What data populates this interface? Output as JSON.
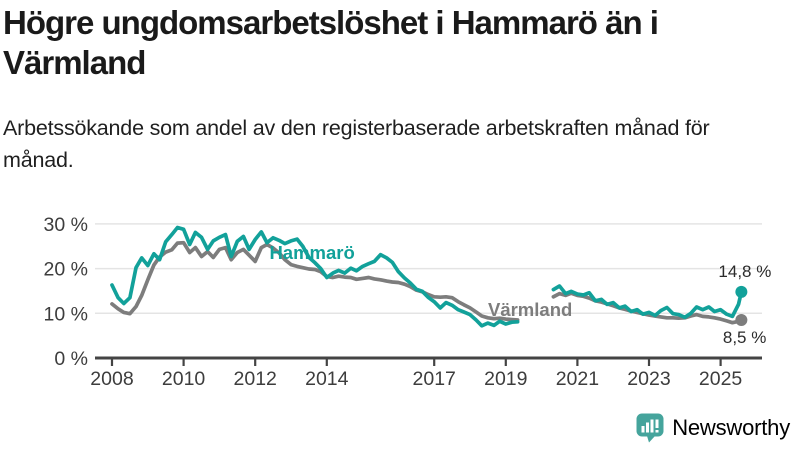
{
  "header": {
    "title": "Högre ungdomsarbetslöshet i Hammarö än i Värmland",
    "subtitle": "Arbetssökande som andel av den registerbaserade arbetskraften månad för månad."
  },
  "colors": {
    "hammaro": "#12a19a",
    "varmland": "#7d7d7d",
    "axis": "#444444",
    "grid": "#e4e4e4",
    "tick_text": "#3d3d3d",
    "annotation_text": "#2b2b2b",
    "logo": "#45a49c"
  },
  "footer": {
    "brand": "Newsworthy",
    "logo_icon": "bar-chart-speech-bubble-icon"
  },
  "chart_data": {
    "type": "line",
    "title": "Högre ungdomsarbetslöshet i Hammarö än i Värmland",
    "subtitle": "Arbetssökande som andel av den registerbaserade arbetskraften månad för månad.",
    "xlabel": "",
    "ylabel": "",
    "ylim": [
      0,
      30
    ],
    "yticks": [
      0,
      10,
      20,
      30
    ],
    "ytick_labels": [
      "0 %",
      "10 %",
      "20 %",
      "30 %"
    ],
    "xticks": [
      2008,
      2010,
      2012,
      2014,
      2017,
      2019,
      2021,
      2023,
      2025
    ],
    "xtick_labels": [
      "2008",
      "2010",
      "2012",
      "2014",
      "2017",
      "2019",
      "2021",
      "2023",
      "2025"
    ],
    "grid": "horizontal",
    "legend": "inline-series-labels",
    "data_gap": "values are null mid-2019 to early-2020",
    "x": [
      2008,
      2008.17,
      2008.33,
      2008.5,
      2008.67,
      2008.83,
      2009,
      2009.17,
      2009.33,
      2009.5,
      2009.67,
      2009.83,
      2010,
      2010.17,
      2010.33,
      2010.5,
      2010.67,
      2010.83,
      2011,
      2011.17,
      2011.33,
      2011.5,
      2011.67,
      2011.83,
      2012,
      2012.17,
      2012.33,
      2012.5,
      2012.67,
      2012.83,
      2013,
      2013.17,
      2013.33,
      2013.5,
      2013.67,
      2013.83,
      2014,
      2014.17,
      2014.33,
      2014.5,
      2014.67,
      2014.83,
      2015,
      2015.17,
      2015.33,
      2015.5,
      2015.67,
      2015.83,
      2016,
      2016.17,
      2016.33,
      2016.5,
      2016.67,
      2016.83,
      2017,
      2017.17,
      2017.33,
      2017.5,
      2017.67,
      2017.83,
      2018,
      2018.17,
      2018.33,
      2018.5,
      2018.67,
      2018.83,
      2019,
      2019.17,
      2019.33,
      2019.5,
      2019.67,
      2019.83,
      2020,
      2020.17,
      2020.33,
      2020.5,
      2020.67,
      2020.83,
      2021,
      2021.17,
      2021.33,
      2021.5,
      2021.67,
      2021.83,
      2022,
      2022.17,
      2022.33,
      2022.5,
      2022.67,
      2022.83,
      2023,
      2023.17,
      2023.33,
      2023.5,
      2023.67,
      2023.83,
      2024,
      2024.17,
      2024.33,
      2024.5,
      2024.67,
      2024.83,
      2025,
      2025.17,
      2025.33,
      2025.5,
      2025.58
    ],
    "series": [
      {
        "name": "Värmland",
        "color": "#7d7d7d",
        "end_label": "8,5 %",
        "end_value": 8.5,
        "label_pos": [
          2019.68,
          9.4
        ],
        "values": [
          12.1,
          11.0,
          10.2,
          9.9,
          11.5,
          14.0,
          17.5,
          20.8,
          22.6,
          23.7,
          24.2,
          25.7,
          25.8,
          23.6,
          24.7,
          22.7,
          23.8,
          22.5,
          24.3,
          24.7,
          22.0,
          23.6,
          24.3,
          23.0,
          21.6,
          24.7,
          25.4,
          24.6,
          23.5,
          22.0,
          20.9,
          20.5,
          20.2,
          19.9,
          19.8,
          19.3,
          18.2,
          18.0,
          18.3,
          18.1,
          18.0,
          17.6,
          17.8,
          18.0,
          17.7,
          17.5,
          17.2,
          17.0,
          16.9,
          16.5,
          16.0,
          15.2,
          14.8,
          14.2,
          13.7,
          13.6,
          13.7,
          13.5,
          12.6,
          11.9,
          11.2,
          10.3,
          9.4,
          9.0,
          8.8,
          8.9,
          8.7,
          8.6,
          8.5,
          null,
          null,
          null,
          null,
          null,
          13.7,
          14.4,
          14.0,
          14.5,
          14.0,
          13.8,
          13.4,
          12.8,
          12.5,
          12.1,
          11.7,
          11.2,
          10.9,
          10.5,
          10.2,
          9.9,
          9.6,
          9.4,
          9.2,
          9.0,
          9.0,
          8.9,
          9.0,
          9.4,
          9.7,
          9.3,
          9.2,
          9.0,
          8.7,
          8.3,
          7.9,
          8.2,
          8.5
        ]
      },
      {
        "name": "Hammarö",
        "color": "#12a19a",
        "end_label": "14,8 %",
        "end_value": 14.8,
        "label_pos": [
          2013.59,
          22.1
        ],
        "values": [
          16.3,
          13.5,
          12.2,
          13.5,
          20.2,
          22.4,
          20.7,
          23.3,
          22.0,
          26.0,
          27.6,
          29.2,
          28.8,
          25.4,
          28.1,
          27.0,
          24.3,
          26.2,
          27.0,
          27.6,
          22.7,
          26.1,
          27.2,
          24.3,
          26.5,
          28.2,
          25.8,
          26.9,
          26.3,
          25.6,
          26.2,
          26.6,
          25.0,
          22.5,
          21.3,
          20.0,
          18.0,
          19.0,
          19.6,
          19.0,
          20.1,
          19.5,
          20.5,
          21.1,
          21.6,
          23.1,
          22.4,
          21.4,
          19.3,
          17.9,
          16.8,
          15.4,
          14.9,
          13.6,
          12.6,
          11.2,
          12.4,
          11.8,
          10.8,
          10.3,
          9.7,
          8.5,
          7.2,
          7.8,
          7.3,
          8.2,
          7.6,
          8.0,
          8.1,
          null,
          null,
          null,
          null,
          null,
          15.3,
          16.1,
          14.4,
          14.9,
          14.3,
          14.1,
          14.6,
          12.8,
          13.1,
          12.0,
          12.4,
          11.2,
          11.6,
          10.4,
          10.8,
          9.8,
          10.2,
          9.5,
          10.6,
          11.3,
          9.9,
          9.7,
          9.1,
          10.0,
          11.4,
          10.8,
          11.4,
          10.4,
          10.8,
          9.8,
          9.3,
          12.0,
          14.8
        ]
      }
    ]
  }
}
